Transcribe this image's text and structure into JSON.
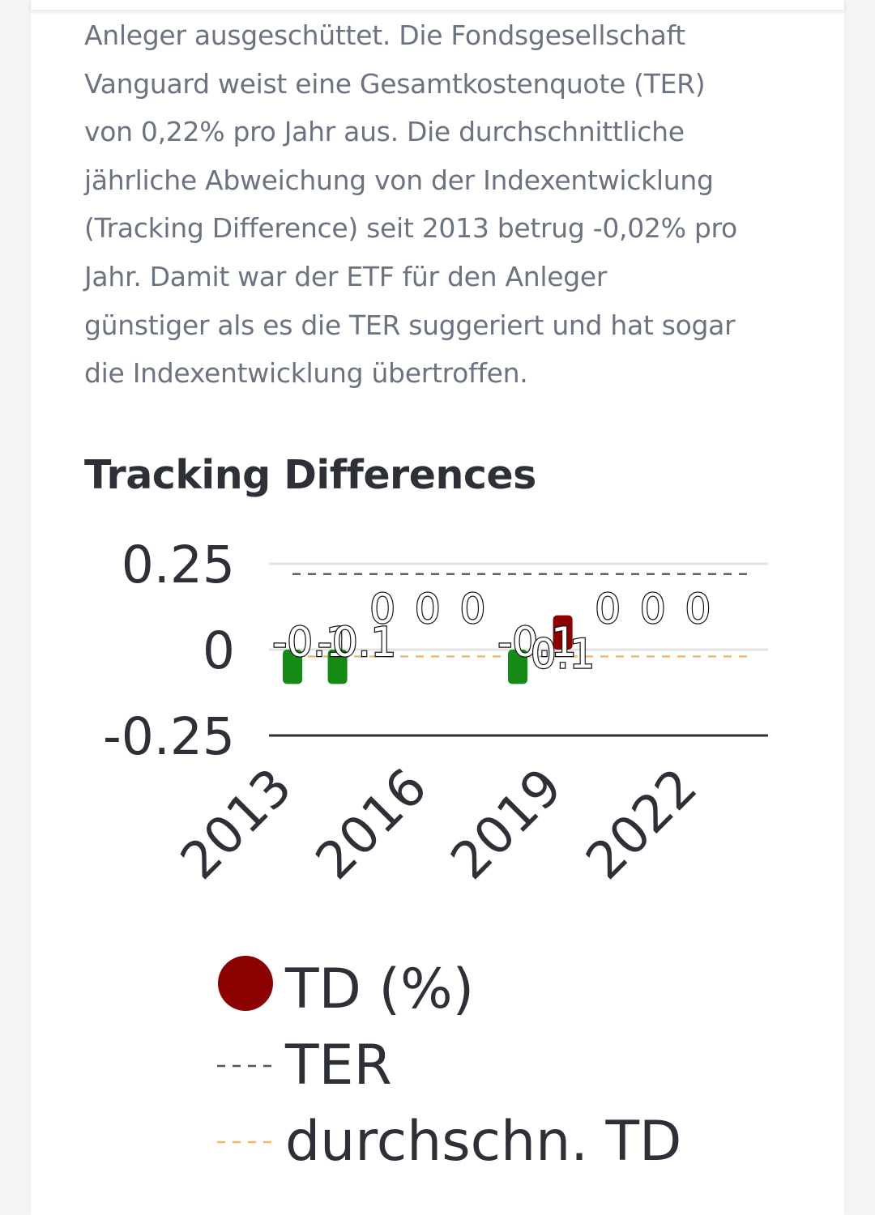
{
  "paragraph": "Anleger ausgeschüttet. Die Fondsgesellschaft\nVanguard weist eine Gesamtkostenquote (TER)\nvon 0,22% pro Jahr aus. Die durchschnittliche\njährliche Abweichung von der Indexentwicklung\n(Tracking Difference) seit 2013 betrug -0,02% pro\nJahr. Damit war der ETF für den Anleger\ngünstiger als es die TER suggeriert und hat sogar\ndie Indexentwicklung übertroffen.",
  "section_title": "Tracking Differences",
  "colors": {
    "negative": "#158a15",
    "positive": "#8b0000",
    "ter_line": "#555555",
    "avg_line": "#f4b860",
    "text": "#2d3036"
  },
  "chart_data": {
    "type": "bar",
    "x": [
      2013,
      2014,
      2015,
      2016,
      2017,
      2018,
      2019,
      2020,
      2021,
      2022
    ],
    "x_tick_labels": [
      "2013",
      "2016",
      "2019",
      "2022"
    ],
    "y_tick_labels": [
      "0.25",
      "0",
      "-0.25"
    ],
    "ylim": [
      -0.25,
      0.25
    ],
    "series": [
      {
        "name": "TD (%)",
        "values": [
          -0.1,
          -0.1,
          0,
          0,
          0,
          -0.1,
          0.1,
          0,
          0,
          0
        ],
        "data_labels": [
          "-0.1",
          "-0.1",
          "0",
          "0",
          "0",
          "-0.1",
          "0.1",
          "0",
          "0",
          "0"
        ]
      },
      {
        "name": "TER",
        "type": "line",
        "value": 0.22
      },
      {
        "name": "durchschn. TD",
        "type": "line",
        "value": -0.02
      }
    ],
    "legend": [
      "TD (%)",
      "TER",
      "durchschn. TD"
    ],
    "legend_position": "bottom",
    "grid": true
  }
}
